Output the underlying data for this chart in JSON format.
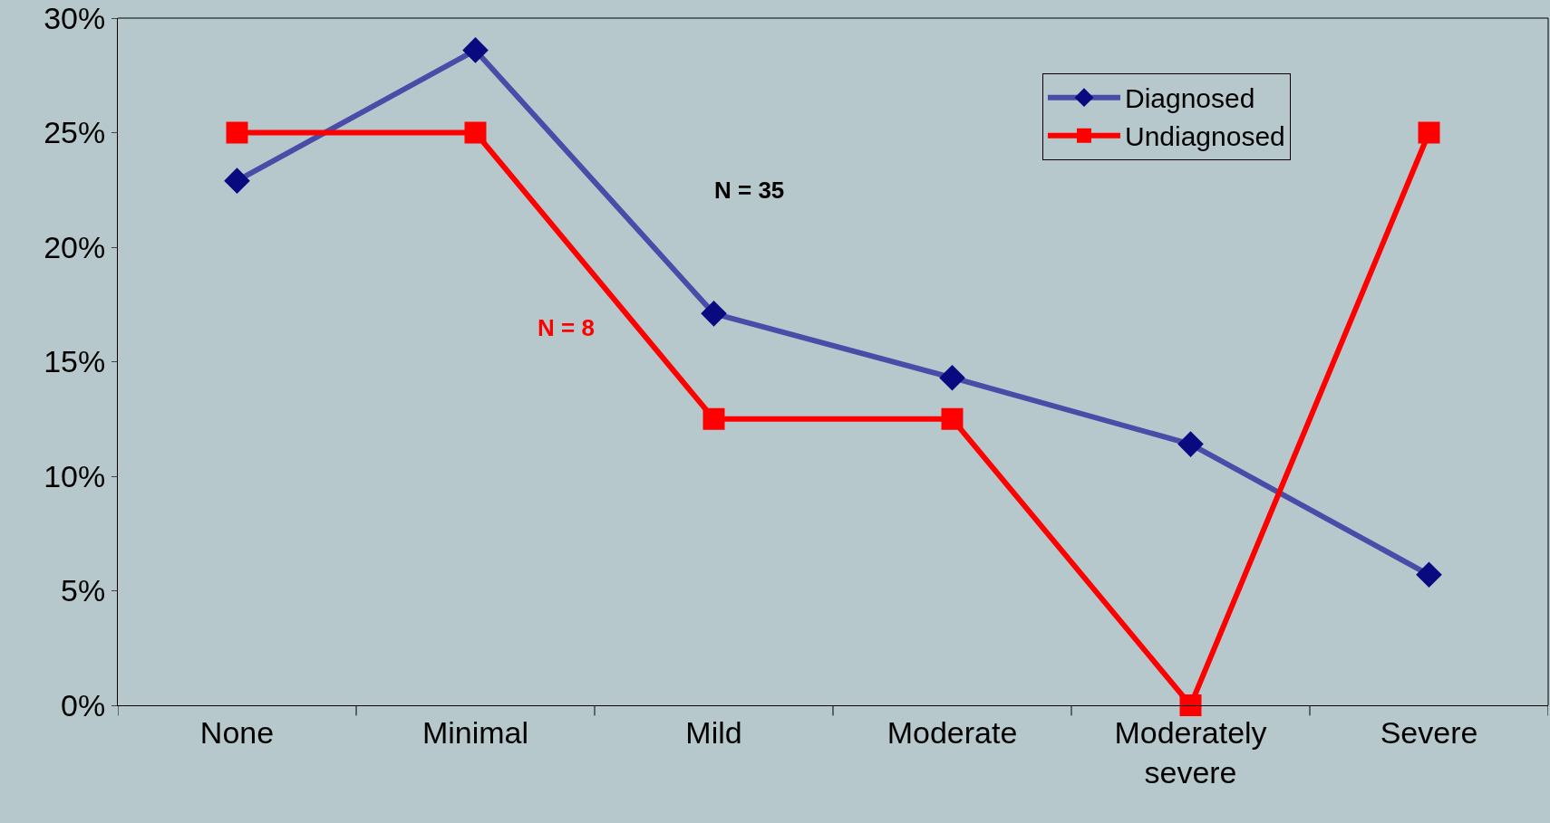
{
  "chart_data": {
    "type": "line",
    "categories": [
      "None",
      "Minimal",
      "Mild",
      "Moderate",
      "Moderately severe",
      "Severe"
    ],
    "series": [
      {
        "name": "Diagnosed",
        "color": "#4b4ba8",
        "marker": "diamond",
        "values": [
          22.9,
          28.6,
          17.1,
          14.3,
          11.4,
          5.7
        ]
      },
      {
        "name": "Undiagnosed",
        "color": "#ff0000",
        "marker": "square",
        "values": [
          25,
          25,
          12.5,
          12.5,
          0,
          25
        ]
      }
    ],
    "ylim": [
      0,
      30
    ],
    "yticks": [
      {
        "value": 0,
        "label": "0%"
      },
      {
        "value": 5,
        "label": "5%"
      },
      {
        "value": 10,
        "label": "10%"
      },
      {
        "value": 15,
        "label": "15%"
      },
      {
        "value": 20,
        "label": "20%"
      },
      {
        "value": 25,
        "label": "25%"
      },
      {
        "value": 30,
        "label": "30%"
      }
    ],
    "annotations": [
      "N = 35",
      "N = 8"
    ],
    "legend": "top right",
    "grid": false,
    "line_style": "solid"
  }
}
